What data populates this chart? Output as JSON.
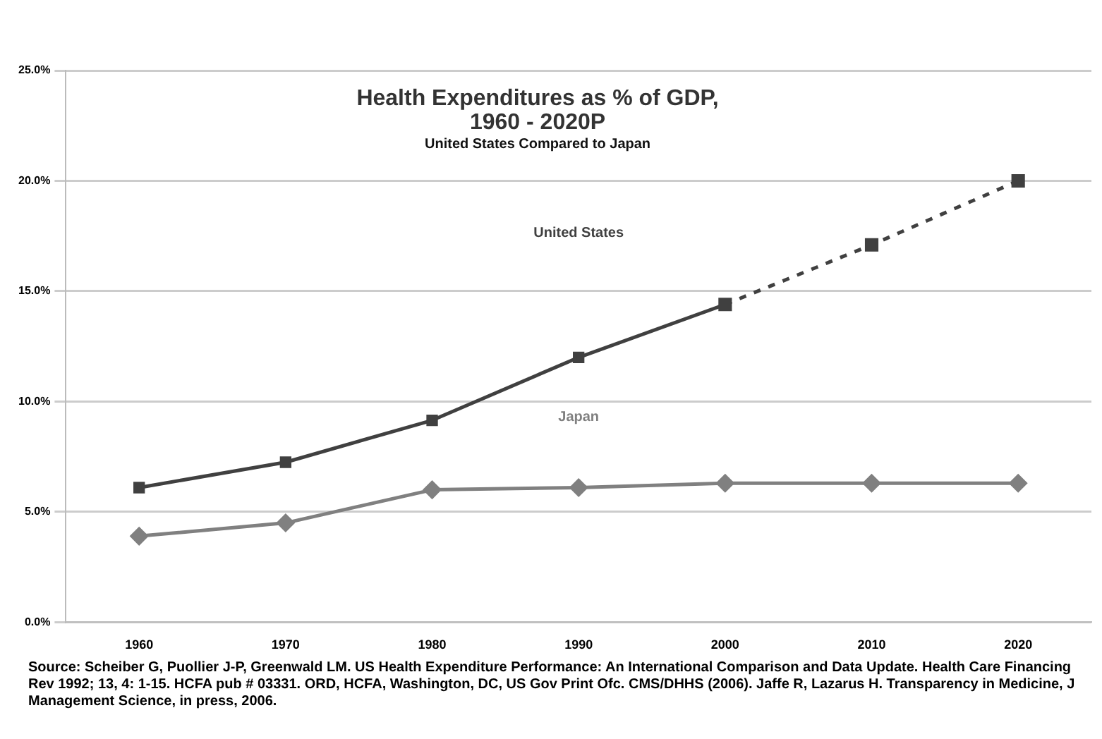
{
  "chart_data": {
    "type": "line",
    "title": "Health Expenditures as % of GDP,\n1960 - 2020P",
    "subtitle": "United States Compared to Japan",
    "categories": [
      "1960",
      "1970",
      "1980",
      "1990",
      "2000",
      "2010",
      "2020"
    ],
    "series": [
      {
        "name": "United States",
        "color": "#404040",
        "marker": "square",
        "line_style": "solid",
        "values": [
          6.1,
          7.25,
          9.15,
          12.0,
          14.4,
          null,
          null
        ]
      },
      {
        "color": "#404040",
        "marker": "square",
        "line_style": "dashed",
        "values": [
          null,
          null,
          null,
          null,
          14.4,
          17.1,
          20.0
        ]
      },
      {
        "name": "Japan",
        "color": "#808080",
        "marker": "diamond",
        "line_style": "solid",
        "values": [
          3.9,
          4.5,
          6.0,
          6.1,
          6.3,
          6.3,
          6.3
        ]
      }
    ],
    "ylim": [
      0,
      25
    ],
    "yticks": [
      {
        "value": 0,
        "label": "0.0%"
      },
      {
        "value": 5,
        "label": "5.0%"
      },
      {
        "value": 10,
        "label": "10.0%"
      },
      {
        "value": 15,
        "label": "15.0%"
      },
      {
        "value": 20,
        "label": "20.0%"
      },
      {
        "value": 25,
        "label": "25.0%"
      }
    ],
    "grid": "y",
    "legend": false,
    "annotations": [
      "Source: Scheiber G, Puollier J-P, Greenwald  LM.  US  Health Expenditure Performance: An International Comparison and Data Update. Health Care Financing Rev 1992; 13, 4: 1-15. HCFA pub    # 03331.  ORD, HCFA, Washington, DC, US Gov  Print Ofc. CMS/DHHS (2006). Jaffe R, Lazarus H.   Transparency in Medicine, J Management Science,  in  press, 2006."
    ]
  }
}
